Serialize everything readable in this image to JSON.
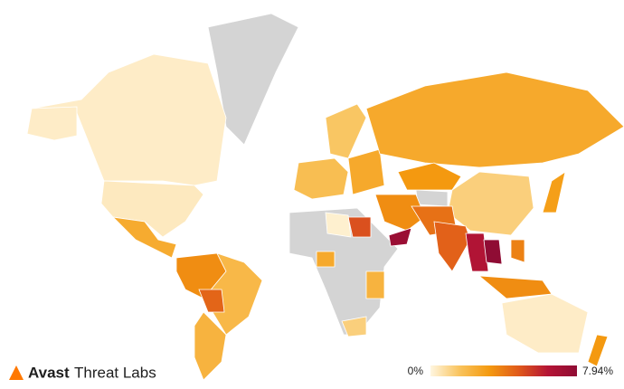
{
  "brand": {
    "name": "Avast",
    "product": "Threat Labs"
  },
  "chart_data": {
    "type": "choropleth",
    "values": [
      0.3,
      0.3,
      0.4,
      2.5,
      3.5,
      2.0,
      4.5,
      2.2,
      1.8,
      1.5,
      2.6,
      2.6,
      3.2,
      1.2,
      3.5,
      4.2,
      4.6,
      6.5,
      7.94,
      3.5,
      3.8,
      3.0,
      0.3,
      3.2,
      5.0,
      0.2,
      2.6,
      7.5,
      2.2,
      1.2
    ],
    "colors": [
      "#fff6e0",
      "#f9c35c",
      "#f49a10",
      "#e05a1a",
      "#b51535",
      "#8f0c34"
    ],
    "legend_ticks": [
      {
        "value": 0,
        "label": "0%"
      },
      {
        "value": 7.94,
        "label": "7.94%"
      }
    ]
  }
}
